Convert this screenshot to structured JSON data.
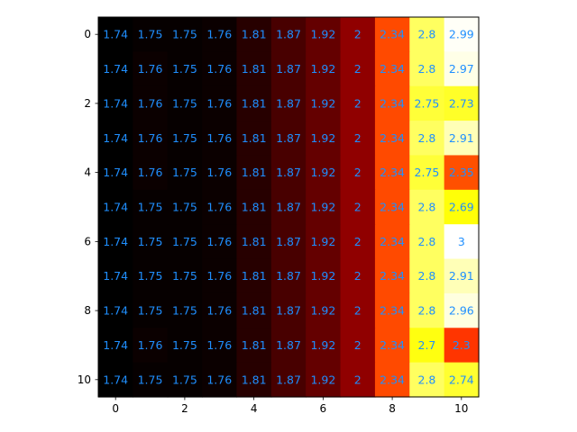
{
  "chart_data": {
    "type": "heatmap",
    "title": "",
    "xlabel": "",
    "ylabel": "",
    "colormap": "hot",
    "vmin": 1.74,
    "vmax": 3.0,
    "label_color": "#1f8fff",
    "x": [
      0,
      1,
      2,
      3,
      4,
      5,
      6,
      7,
      8,
      9,
      10
    ],
    "y": [
      0,
      1,
      2,
      3,
      4,
      5,
      6,
      7,
      8,
      9,
      10
    ],
    "x_ticks": [
      0,
      2,
      4,
      6,
      8,
      10
    ],
    "y_ticks": [
      0,
      2,
      4,
      6,
      8,
      10
    ],
    "grid": false,
    "values": [
      [
        1.74,
        1.75,
        1.75,
        1.76,
        1.81,
        1.87,
        1.92,
        2.0,
        2.34,
        2.8,
        2.99
      ],
      [
        1.74,
        1.76,
        1.75,
        1.76,
        1.81,
        1.87,
        1.92,
        2.0,
        2.34,
        2.8,
        2.97
      ],
      [
        1.74,
        1.76,
        1.75,
        1.76,
        1.81,
        1.87,
        1.92,
        2.0,
        2.34,
        2.75,
        2.73
      ],
      [
        1.74,
        1.76,
        1.75,
        1.76,
        1.81,
        1.87,
        1.92,
        2.0,
        2.34,
        2.8,
        2.91
      ],
      [
        1.74,
        1.76,
        1.75,
        1.76,
        1.81,
        1.87,
        1.92,
        2.0,
        2.34,
        2.75,
        2.35
      ],
      [
        1.74,
        1.75,
        1.75,
        1.76,
        1.81,
        1.87,
        1.92,
        2.0,
        2.34,
        2.8,
        2.69
      ],
      [
        1.74,
        1.75,
        1.75,
        1.76,
        1.81,
        1.87,
        1.92,
        2.0,
        2.34,
        2.8,
        3.0
      ],
      [
        1.74,
        1.75,
        1.75,
        1.76,
        1.81,
        1.87,
        1.92,
        2.0,
        2.34,
        2.8,
        2.91
      ],
      [
        1.74,
        1.75,
        1.75,
        1.76,
        1.81,
        1.87,
        1.92,
        2.0,
        2.34,
        2.8,
        2.96
      ],
      [
        1.74,
        1.76,
        1.75,
        1.76,
        1.81,
        1.87,
        1.92,
        2.0,
        2.34,
        2.7,
        2.3
      ],
      [
        1.74,
        1.75,
        1.75,
        1.76,
        1.81,
        1.87,
        1.92,
        2.0,
        2.34,
        2.8,
        2.74
      ]
    ]
  }
}
